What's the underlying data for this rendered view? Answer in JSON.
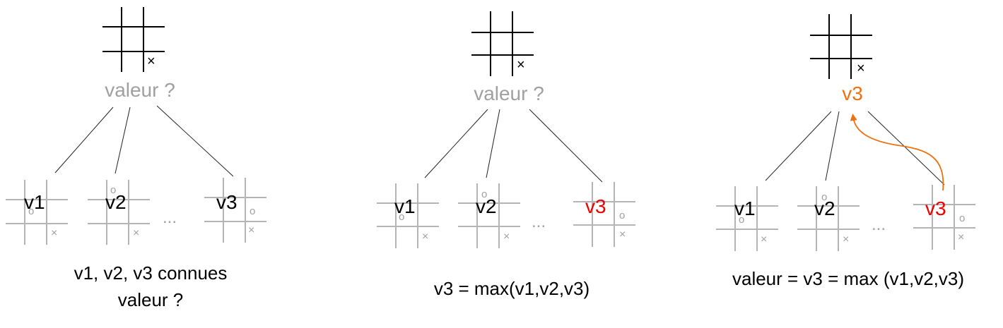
{
  "colors": {
    "black": "#000000",
    "gray_text": "#a0a0a0",
    "gray_grid": "#b4b4b4",
    "red": "#ee0000",
    "orange": "#f07010",
    "edge": "#222222"
  },
  "panels": [
    {
      "root_label": "valeur ?",
      "root_label_color": "gray",
      "children": [
        {
          "label": "v1",
          "color": "black"
        },
        {
          "label": "v2",
          "color": "black"
        },
        {
          "label": "v3",
          "color": "black"
        }
      ],
      "ellipsis": "...",
      "caption": [
        "v1, v2, v3 connues",
        "valeur ?"
      ],
      "arrow": false
    },
    {
      "root_label": "valeur ?",
      "root_label_color": "gray",
      "children": [
        {
          "label": "v1",
          "color": "black"
        },
        {
          "label": "v2",
          "color": "black"
        },
        {
          "label": "v3",
          "color": "red"
        }
      ],
      "ellipsis": "...",
      "caption": [
        "v3 = max(v1,v2,v3)"
      ],
      "arrow": false
    },
    {
      "root_label": "v3",
      "root_label_color": "orange",
      "children": [
        {
          "label": "v1",
          "color": "black"
        },
        {
          "label": "v2",
          "color": "black"
        },
        {
          "label": "v3",
          "color": "red"
        }
      ],
      "ellipsis": "...",
      "caption": [
        "valeur = v3 = max (v1,v2,v3)"
      ],
      "arrow": true
    }
  ]
}
